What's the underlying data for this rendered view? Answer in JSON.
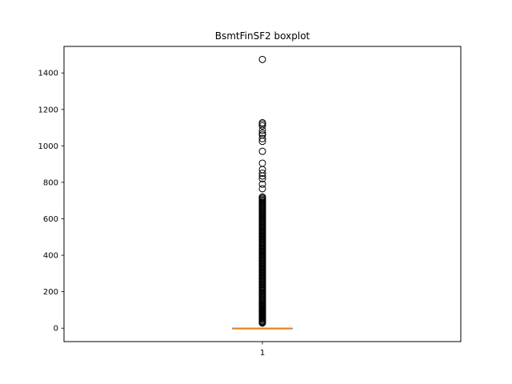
{
  "chart_data": {
    "type": "boxplot",
    "title": "BsmtFinSF2 boxplot",
    "xlabel": "",
    "ylabel": "",
    "categories": [
      "1"
    ],
    "ylim": [
      -73.6,
      1545.6
    ],
    "y_ticks": [
      0,
      200,
      400,
      600,
      800,
      1000,
      1200,
      1400
    ],
    "grid": false,
    "box": {
      "q1": 0,
      "median": 0,
      "q3": 0,
      "whisker_low": 0,
      "whisker_high": 0
    },
    "outliers": [
      28,
      32,
      35,
      40,
      41,
      48,
      53,
      58,
      64,
      68,
      72,
      76,
      80,
      84,
      88,
      92,
      96,
      100,
      105,
      110,
      115,
      120,
      125,
      130,
      135,
      140,
      146,
      150,
      156,
      162,
      168,
      175,
      180,
      186,
      192,
      198,
      205,
      210,
      216,
      222,
      228,
      234,
      240,
      246,
      252,
      258,
      264,
      270,
      276,
      282,
      288,
      294,
      300,
      306,
      312,
      318,
      324,
      330,
      336,
      342,
      348,
      354,
      360,
      366,
      372,
      378,
      384,
      390,
      396,
      402,
      408,
      414,
      420,
      426,
      432,
      438,
      444,
      450,
      456,
      462,
      468,
      474,
      480,
      486,
      492,
      498,
      504,
      510,
      516,
      522,
      528,
      534,
      540,
      546,
      552,
      558,
      564,
      570,
      576,
      582,
      588,
      594,
      600,
      606,
      612,
      618,
      624,
      630,
      636,
      642,
      648,
      654,
      660,
      666,
      672,
      678,
      684,
      690,
      696,
      702,
      708,
      714,
      720,
      765,
      790,
      820,
      835,
      850,
      870,
      905,
      970,
      1025,
      1040,
      1060,
      1070,
      1085,
      1110,
      1120,
      1127,
      1474
    ]
  }
}
